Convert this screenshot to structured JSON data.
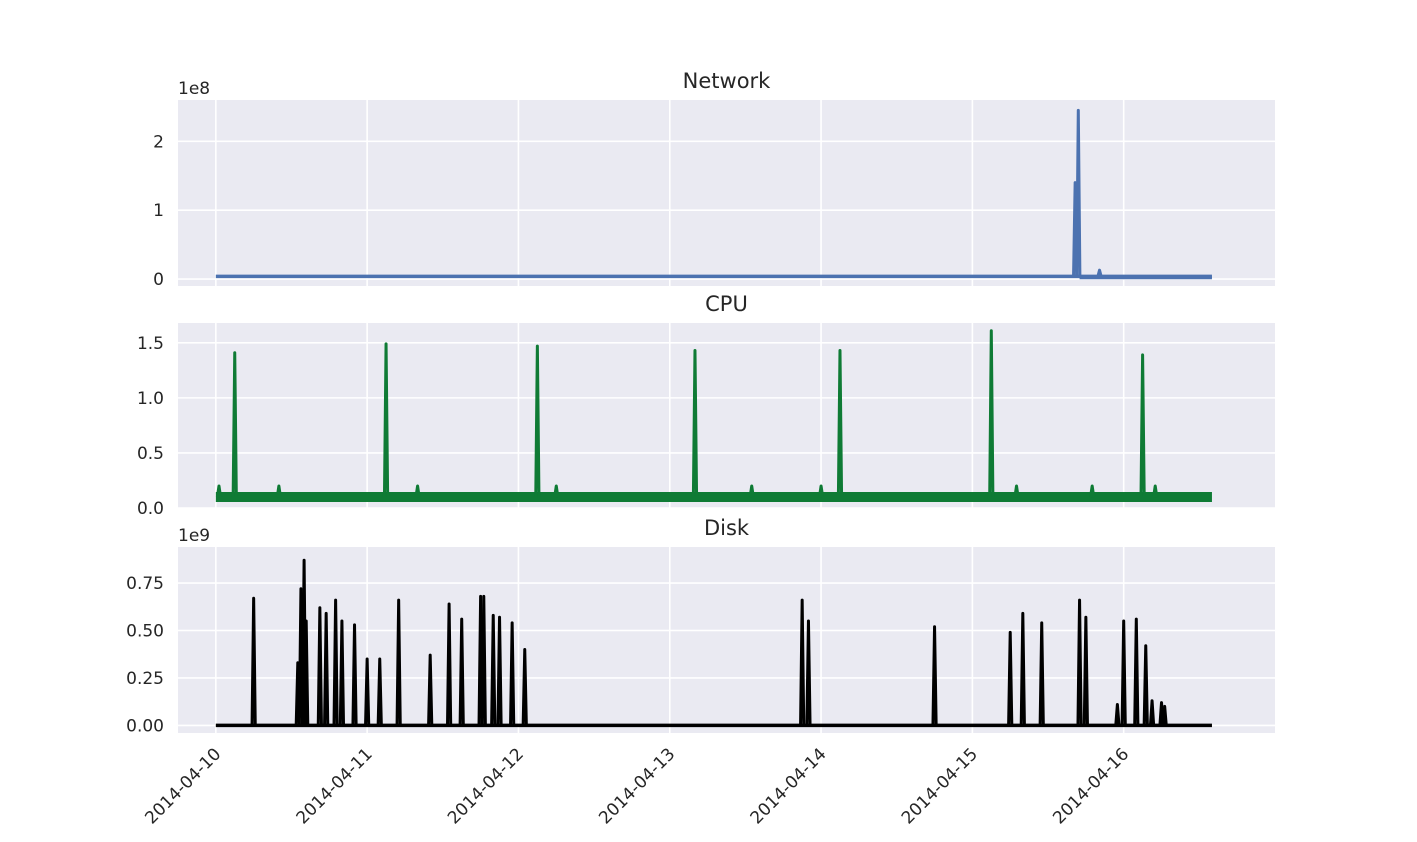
{
  "chart_data": [
    {
      "type": "line",
      "title": "Network",
      "offset_label": "1e8",
      "ylim": [
        -10000000.0,
        260000000.0
      ],
      "yticks": [
        0,
        100000000,
        200000000
      ],
      "ytick_labels": [
        "0",
        "1",
        "2"
      ],
      "xlim": [
        "2014-04-09 18:00",
        "2014-04-17 00:00"
      ],
      "color": "#4c72b0",
      "baseline": 4000000,
      "series": [
        {
          "x": [
            "2014-04-10 00:00",
            "2014-04-15 16:00",
            "2014-04-15 16:18",
            "2014-04-15 16:30",
            "2014-04-15 16:48",
            "2014-04-15 17:00",
            "2014-04-15 20:00",
            "2014-04-15 20:10",
            "2014-04-15 20:20",
            "2014-04-16 14:00"
          ],
          "y": [
            4000000,
            4000000,
            140000000,
            4000000,
            245000000,
            4000000,
            4000000,
            13000000,
            2000000,
            2000000
          ]
        }
      ]
    },
    {
      "type": "line",
      "title": "CPU",
      "ylim": [
        0,
        1.68
      ],
      "yticks": [
        0,
        0.5,
        1.0,
        1.5
      ],
      "ytick_labels": [
        "0.0",
        "0.5",
        "1.0",
        "1.5"
      ],
      "xlim": [
        "2014-04-09 18:00",
        "2014-04-17 00:00"
      ],
      "color": "#0f7b35",
      "baseline": 0.1,
      "series": [
        {
          "x": [
            "2014-04-10 00:00",
            "2014-04-10 00:30",
            "2014-04-10 03:00",
            "2014-04-10 10:00",
            "2014-04-11 03:00",
            "2014-04-11 08:00",
            "2014-04-12 03:00",
            "2014-04-12 06:00",
            "2014-04-13 04:00",
            "2014-04-13 13:00",
            "2014-04-14 00:00",
            "2014-04-14 03:00",
            "2014-04-15 03:00",
            "2014-04-15 07:00",
            "2014-04-15 19:00",
            "2014-04-16 03:00",
            "2014-04-16 05:00",
            "2014-04-16 14:00"
          ],
          "y": [
            0.1,
            0.2,
            1.41,
            0.2,
            1.49,
            0.2,
            1.47,
            0.2,
            1.43,
            0.2,
            0.2,
            1.43,
            1.61,
            0.2,
            0.2,
            1.39,
            0.2,
            0.1
          ]
        }
      ]
    },
    {
      "type": "line",
      "title": "Disk",
      "offset_label": "1e9",
      "ylim": [
        -40000000.0,
        940000000.0
      ],
      "yticks": [
        0,
        250000000,
        500000000,
        750000000
      ],
      "ytick_labels": [
        "0.00",
        "0.25",
        "0.50",
        "0.75"
      ],
      "xlim": [
        "2014-04-09 18:00",
        "2014-04-17 00:00"
      ],
      "color": "#000000",
      "baseline": 0,
      "series": [
        {
          "x": [
            "2014-04-10 06:00",
            "2014-04-10 13:00",
            "2014-04-10 13:30",
            "2014-04-10 14:00",
            "2014-04-10 14:20",
            "2014-04-10 16:30",
            "2014-04-10 17:30",
            "2014-04-10 19:00",
            "2014-04-10 20:00",
            "2014-04-10 22:00",
            "2014-04-11 00:00",
            "2014-04-11 02:00",
            "2014-04-11 05:00",
            "2014-04-11 10:00",
            "2014-04-11 13:00",
            "2014-04-11 15:00",
            "2014-04-11 18:00",
            "2014-04-11 18:30",
            "2014-04-11 20:00",
            "2014-04-11 21:00",
            "2014-04-11 23:00",
            "2014-04-12 01:00",
            "2014-04-13 21:00",
            "2014-04-13 22:00",
            "2014-04-14 18:00",
            "2014-04-15 06:00",
            "2014-04-15 08:00",
            "2014-04-15 11:00",
            "2014-04-15 17:00",
            "2014-04-15 18:00",
            "2014-04-15 23:00",
            "2014-04-16 00:00",
            "2014-04-16 02:00",
            "2014-04-16 03:30",
            "2014-04-16 04:30",
            "2014-04-16 06:00",
            "2014-04-16 06:30"
          ],
          "y": [
            670000000,
            330000000,
            720000000,
            870000000,
            550000000,
            620000000,
            590000000,
            660000000,
            550000000,
            530000000,
            350000000,
            350000000,
            660000000,
            370000000,
            640000000,
            560000000,
            680000000,
            680000000,
            580000000,
            570000000,
            540000000,
            400000000,
            660000000,
            550000000,
            520000000,
            490000000,
            590000000,
            540000000,
            660000000,
            570000000,
            110000000,
            550000000,
            560000000,
            420000000,
            130000000,
            120000000,
            100000000
          ]
        }
      ]
    }
  ],
  "x_tick_labels": [
    "2014-04-10",
    "2014-04-11",
    "2014-04-12",
    "2014-04-13",
    "2014-04-14",
    "2014-04-15",
    "2014-04-16"
  ]
}
